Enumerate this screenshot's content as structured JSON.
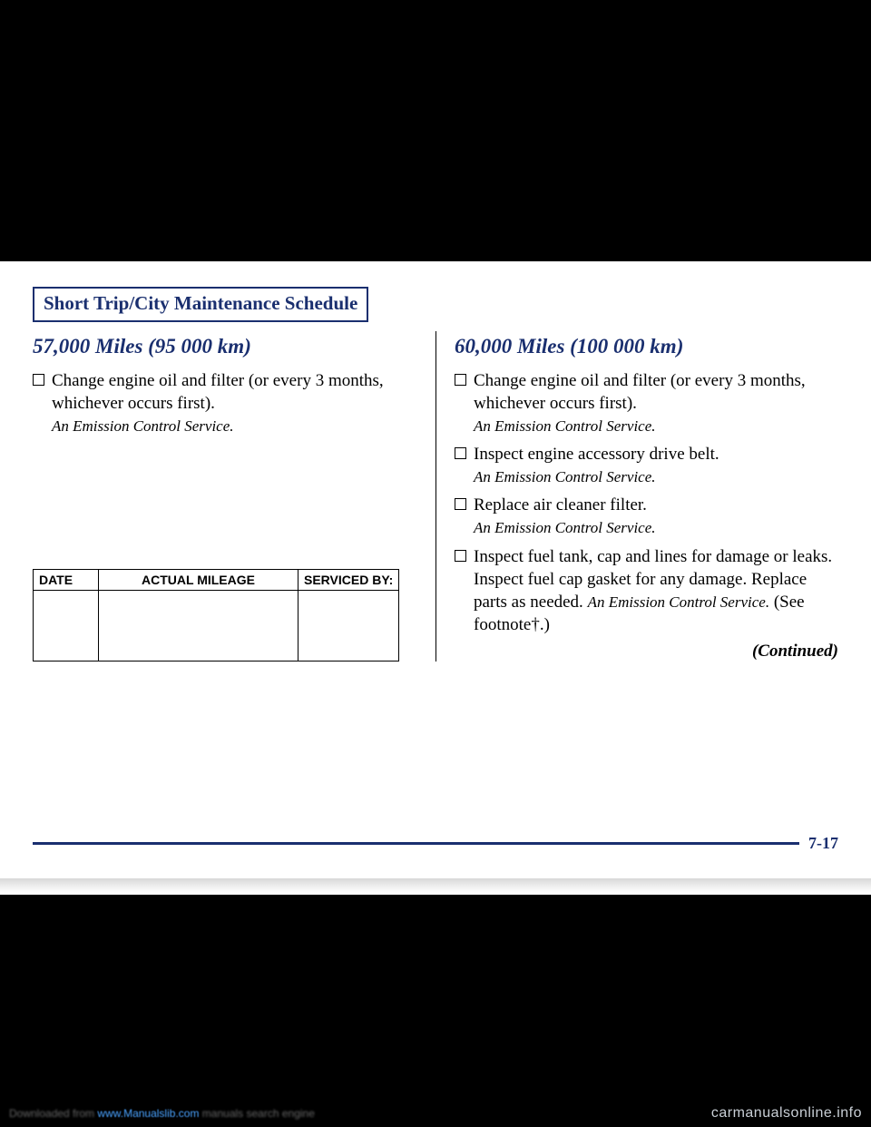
{
  "title": "Short Trip/City Maintenance Schedule",
  "left": {
    "heading": "57,000 Miles (95 000 km)",
    "items": [
      {
        "text": "Change engine oil and filter (or every 3 months, whichever occurs first).",
        "note": "An Emission Control Service."
      }
    ]
  },
  "right": {
    "heading": "60,000 Miles (100 000 km)",
    "items": [
      {
        "text": "Change engine oil and filter (or every 3 months, whichever occurs first).",
        "note": "An Emission Control Service."
      },
      {
        "text": "Inspect engine accessory drive belt.",
        "note": "An Emission Control Service."
      },
      {
        "text": "Replace air cleaner filter.",
        "note": "An Emission Control Service."
      },
      {
        "text": "Inspect fuel tank, cap and lines for damage or leaks. Inspect fuel cap gasket for any damage. Replace parts as needed.",
        "note_inline": "An Emission Control Service.",
        "tail": " (See footnote†.)"
      }
    ],
    "continued": "(Continued)"
  },
  "table": {
    "headers": [
      "DATE",
      "ACTUAL MILEAGE",
      "SERVICED BY:"
    ]
  },
  "page_number": "7-17",
  "watermark": "carmanualsonline.info",
  "download_text": "Downloaded from",
  "download_link": "www.Manualslib.com",
  "download_tail": "manuals search engine"
}
